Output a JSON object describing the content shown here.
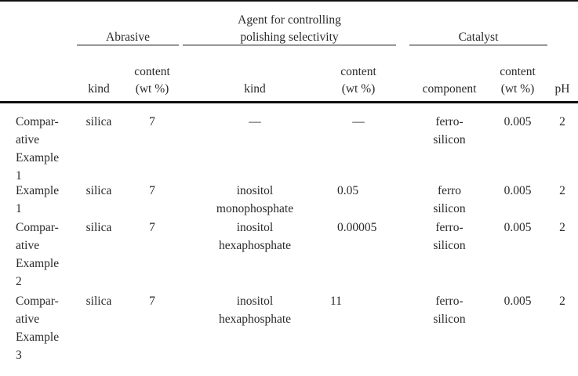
{
  "header": {
    "abrasive": "Abrasive",
    "agent_line1": "Agent for controlling",
    "agent_line2": "polishing selectivity",
    "catalyst": "Catalyst",
    "kind": "kind",
    "content_line1": "content",
    "content_line2": "(wt %)",
    "agent_kind": "kind",
    "agent_content_line1": "content",
    "agent_content_line2": "(wt %)",
    "component": "component",
    "cat_content_line1": "content",
    "cat_content_line2": "(wt %)",
    "ph": "pH"
  },
  "rows": [
    {
      "label": [
        "Compar-",
        "ative",
        "Example",
        "1"
      ],
      "kind": "silica",
      "content": "7",
      "agent_kind": [
        "—"
      ],
      "agent_content": "—",
      "component": [
        "ferro-",
        "silicon"
      ],
      "cat_content": "0.005",
      "ph": "2"
    },
    {
      "label": [
        "Example",
        "1"
      ],
      "kind": "silica",
      "content": "7",
      "agent_kind": [
        "inositol",
        "monophosphate"
      ],
      "agent_content": "0.05",
      "component": [
        "ferro",
        "silicon"
      ],
      "cat_content": "0.005",
      "ph": "2"
    },
    {
      "label": [
        "Compar-",
        "ative",
        "Example",
        "2"
      ],
      "kind": "silica",
      "content": "7",
      "agent_kind": [
        "inositol",
        "hexaphosphate"
      ],
      "agent_content": "0.00005",
      "component": [
        "ferro-",
        "silicon"
      ],
      "cat_content": "0.005",
      "ph": "2"
    },
    {
      "label": [
        "Compar-",
        "ative",
        "Example",
        "3"
      ],
      "kind": "silica",
      "content": "7",
      "agent_kind": [
        "inositol",
        "hexaphosphate"
      ],
      "agent_content": "11",
      "component": [
        "ferro-",
        "silicon"
      ],
      "cat_content": "0.005",
      "ph": "2"
    }
  ]
}
